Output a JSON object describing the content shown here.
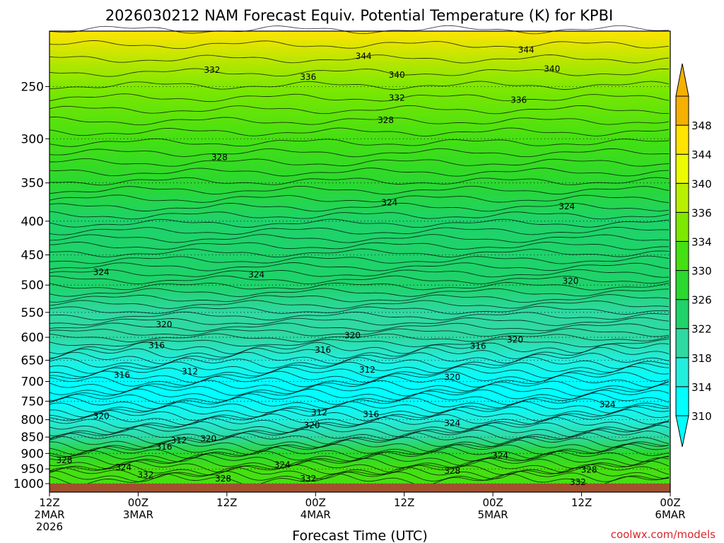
{
  "chart_data": {
    "type": "heatmap",
    "title": "2026030212 NAM Forecast Equiv. Potential Temperature (K) for KPBI",
    "xlabel": "Forecast Time (UTC)",
    "credit": "coolwx.com/models",
    "y_axis": {
      "scale": "log-pressure",
      "inverted": true,
      "range": [
        1000,
        200
      ],
      "ticks": [
        250,
        300,
        350,
        400,
        450,
        500,
        550,
        600,
        650,
        700,
        750,
        800,
        850,
        900,
        950,
        1000
      ],
      "grid": "dotted"
    },
    "x_axis": {
      "range_hours": [
        0,
        84
      ],
      "ticks": [
        {
          "hour": 0,
          "lines": [
            "12Z",
            "2MAR",
            "2026"
          ]
        },
        {
          "hour": 12,
          "lines": [
            "00Z",
            "3MAR"
          ]
        },
        {
          "hour": 24,
          "lines": [
            "12Z"
          ]
        },
        {
          "hour": 36,
          "lines": [
            "00Z",
            "4MAR"
          ]
        },
        {
          "hour": 48,
          "lines": [
            "12Z"
          ]
        },
        {
          "hour": 60,
          "lines": [
            "00Z",
            "5MAR"
          ]
        },
        {
          "hour": 72,
          "lines": [
            "12Z"
          ]
        },
        {
          "hour": 84,
          "lines": [
            "00Z",
            "6MAR"
          ]
        }
      ]
    },
    "colorbar": {
      "levels": [
        310,
        314,
        318,
        322,
        326,
        330,
        334,
        336,
        340,
        344,
        348
      ],
      "colors": [
        "#00ffff",
        "#22eedd",
        "#2fd9a2",
        "#1ed36a",
        "#2ad82f",
        "#45e012",
        "#7ee800",
        "#b8f000",
        "#ecfb00",
        "#ffe400",
        "#f5b000"
      ],
      "extend": "both"
    },
    "profile": {
      "pressure": [
        200,
        250,
        300,
        350,
        400,
        450,
        500,
        550,
        600,
        650,
        700,
        750,
        800,
        850,
        900,
        950,
        1000
      ],
      "theta_e": [
        346,
        334,
        330,
        327,
        324,
        323,
        322,
        320,
        318,
        315,
        312,
        312,
        314,
        318,
        326,
        330,
        333
      ]
    },
    "contour_labels": [
      {
        "value": "344",
        "hour": 42.5,
        "p": 225
      },
      {
        "value": "344",
        "hour": 64.5,
        "p": 220
      },
      {
        "value": "340",
        "hour": 47,
        "p": 240
      },
      {
        "value": "340",
        "hour": 68,
        "p": 235
      },
      {
        "value": "336",
        "hour": 35,
        "p": 242
      },
      {
        "value": "336",
        "hour": 63.5,
        "p": 262
      },
      {
        "value": "332",
        "hour": 22,
        "p": 236
      },
      {
        "value": "332",
        "hour": 47,
        "p": 260
      },
      {
        "value": "328",
        "hour": 45.5,
        "p": 281
      },
      {
        "value": "328",
        "hour": 23,
        "p": 320
      },
      {
        "value": "324",
        "hour": 46,
        "p": 375
      },
      {
        "value": "324",
        "hour": 70,
        "p": 380
      },
      {
        "value": "324",
        "hour": 7,
        "p": 478
      },
      {
        "value": "324",
        "hour": 28,
        "p": 482
      },
      {
        "value": "320",
        "hour": 15.5,
        "p": 574
      },
      {
        "value": "320",
        "hour": 41,
        "p": 596
      },
      {
        "value": "320",
        "hour": 70.5,
        "p": 493
      },
      {
        "value": "320",
        "hour": 63,
        "p": 605
      },
      {
        "value": "316",
        "hour": 14.5,
        "p": 617
      },
      {
        "value": "316",
        "hour": 37,
        "p": 627
      },
      {
        "value": "316",
        "hour": 58,
        "p": 619
      },
      {
        "value": "316",
        "hour": 9.8,
        "p": 685
      },
      {
        "value": "316",
        "hour": 43.5,
        "p": 785
      },
      {
        "value": "316",
        "hour": 15.5,
        "p": 880
      },
      {
        "value": "312",
        "hour": 19,
        "p": 676
      },
      {
        "value": "312",
        "hour": 43,
        "p": 672
      },
      {
        "value": "312",
        "hour": 36.5,
        "p": 780
      },
      {
        "value": "312",
        "hour": 17.5,
        "p": 860
      },
      {
        "value": "320",
        "hour": 21.5,
        "p": 855
      },
      {
        "value": "320",
        "hour": 35.5,
        "p": 816
      },
      {
        "value": "320",
        "hour": 54.5,
        "p": 690
      },
      {
        "value": "320",
        "hour": 7,
        "p": 790
      },
      {
        "value": "324",
        "hour": 54.5,
        "p": 810
      },
      {
        "value": "324",
        "hour": 75.5,
        "p": 758
      },
      {
        "value": "324",
        "hour": 10,
        "p": 945
      },
      {
        "value": "324",
        "hour": 31.5,
        "p": 937
      },
      {
        "value": "324",
        "hour": 61,
        "p": 907
      },
      {
        "value": "328",
        "hour": 2,
        "p": 922
      },
      {
        "value": "328",
        "hour": 23.5,
        "p": 983
      },
      {
        "value": "328",
        "hour": 54.5,
        "p": 956
      },
      {
        "value": "328",
        "hour": 73,
        "p": 953
      },
      {
        "value": "332",
        "hour": 13,
        "p": 970
      },
      {
        "value": "332",
        "hour": 35,
        "p": 983
      },
      {
        "value": "332",
        "hour": 71.5,
        "p": 995
      }
    ]
  }
}
